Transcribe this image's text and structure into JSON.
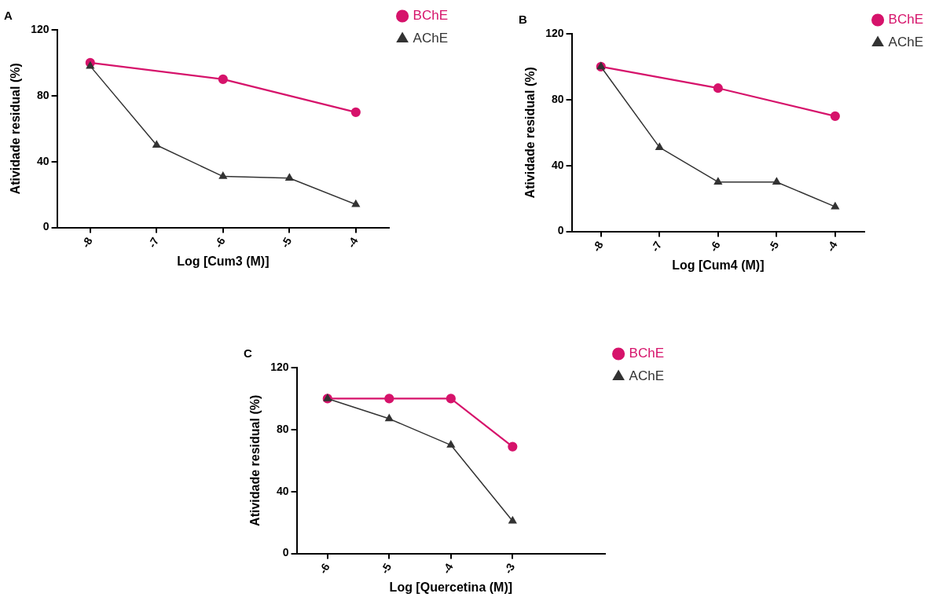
{
  "chart_data": [
    {
      "type": "line",
      "title": "A",
      "xlabel": "Log [Cum3 (M)]",
      "ylabel": "Atividade residual (%)",
      "xlim": [
        -8.5,
        -3.5
      ],
      "xticks": [
        -8,
        -7,
        -6,
        -5,
        -4
      ],
      "ylim": [
        0,
        120
      ],
      "yticks": [
        0,
        40,
        80,
        120
      ],
      "grid": false,
      "legend": "top right",
      "series": [
        {
          "name": "BChE",
          "color": "#d6136b",
          "marker": "circle",
          "x": [
            -8,
            -6,
            -4
          ],
          "values": [
            100,
            90,
            70
          ]
        },
        {
          "name": "AChE",
          "color": "#333333",
          "marker": "triangle",
          "x": [
            -8,
            -7,
            -6,
            -5,
            -4
          ],
          "values": [
            98,
            50,
            31,
            30,
            14
          ]
        }
      ]
    },
    {
      "type": "line",
      "title": "B",
      "xlabel": "Log [Cum4 (M)]",
      "ylabel": "Atividade residual (%)",
      "xlim": [
        -8.5,
        -3.5
      ],
      "xticks": [
        -8,
        -7,
        -6,
        -5,
        -4
      ],
      "ylim": [
        0,
        120
      ],
      "yticks": [
        0,
        40,
        80,
        120
      ],
      "grid": false,
      "legend": "top right",
      "series": [
        {
          "name": "BChE",
          "color": "#d6136b",
          "marker": "circle",
          "x": [
            -8,
            -6,
            -4
          ],
          "values": [
            100,
            87,
            70
          ]
        },
        {
          "name": "AChE",
          "color": "#333333",
          "marker": "triangle",
          "x": [
            -8,
            -7,
            -6,
            -5,
            -4
          ],
          "values": [
            100,
            51,
            30,
            30,
            15
          ]
        }
      ]
    },
    {
      "type": "line",
      "title": "C",
      "xlabel": "Log [Quercetina (M)]",
      "ylabel": "Atividade residual (%)",
      "xlim": [
        -6.5,
        -1.5
      ],
      "xticks": [
        -6,
        -5,
        -4,
        -3
      ],
      "ylim": [
        0,
        120
      ],
      "yticks": [
        0,
        40,
        80,
        120
      ],
      "grid": false,
      "legend": "top right",
      "series": [
        {
          "name": "BChE",
          "color": "#d6136b",
          "marker": "circle",
          "x": [
            -6,
            -5,
            -4,
            -3
          ],
          "values": [
            100,
            100,
            100,
            69
          ]
        },
        {
          "name": "AChE",
          "color": "#333333",
          "marker": "triangle",
          "x": [
            -6,
            -5,
            -4,
            -3
          ],
          "values": [
            100,
            87,
            70,
            21
          ]
        }
      ]
    }
  ]
}
